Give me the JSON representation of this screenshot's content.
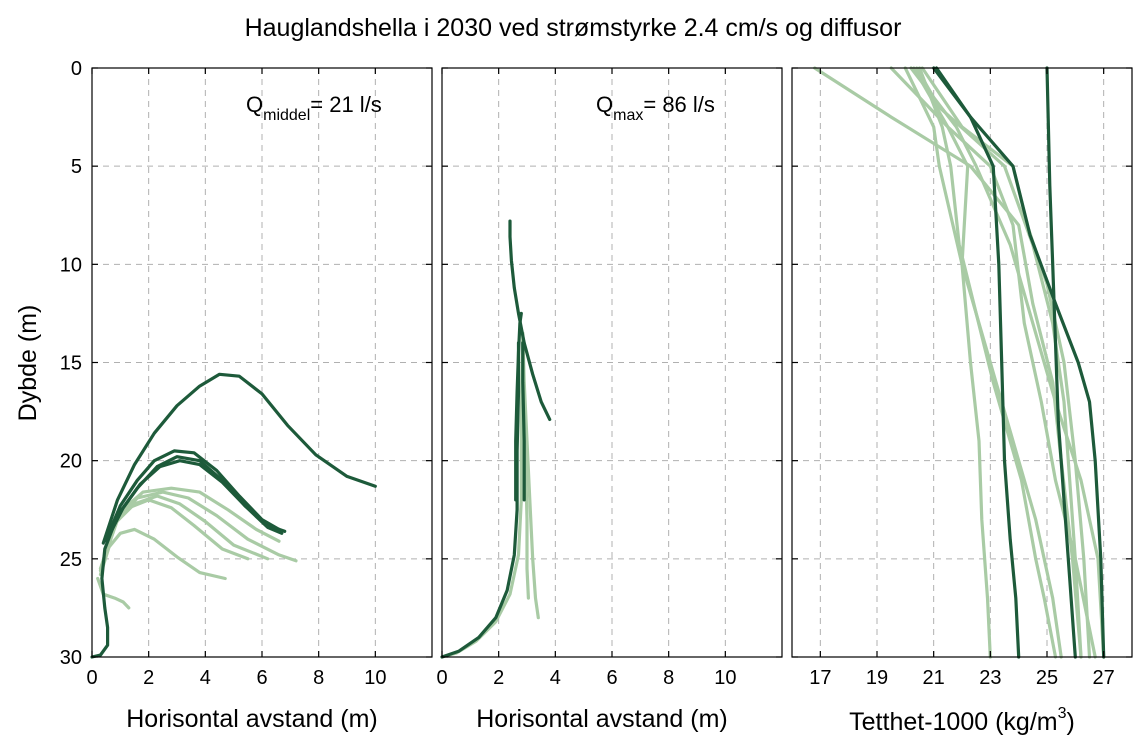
{
  "figure": {
    "title": "Hauglandshella i 2030 ved strømstyrke 2.4 cm/s og diffusor"
  },
  "colors": {
    "dark": "#1d5a3a",
    "light": "#a9cba5"
  },
  "chart_data": [
    {
      "type": "line",
      "ylabel": "Dybde (m)",
      "xlabel": "Horisontal avstand (m)",
      "annotation": {
        "main": "Q",
        "sub": "middel",
        "rest": "= 21 l/s"
      },
      "xlim": [
        0,
        12
      ],
      "ylim": [
        30,
        0
      ],
      "y_reversed": true,
      "xticks": [
        "0",
        "2",
        "4",
        "6",
        "8",
        "10"
      ],
      "yticks": [
        "0",
        "5",
        "10",
        "15",
        "20",
        "25",
        "30"
      ],
      "grid": true,
      "series": [
        {
          "color": "light",
          "x": [
            0.2,
            0.4,
            0.8,
            1.1,
            1.3
          ],
          "y": [
            26.0,
            26.8,
            27.0,
            27.2,
            27.5
          ]
        },
        {
          "color": "light",
          "x": [
            0.3,
            0.6,
            1.0,
            1.5,
            2.2,
            3.0,
            3.8,
            4.7
          ],
          "y": [
            25.8,
            24.4,
            23.7,
            23.5,
            24.0,
            24.9,
            25.7,
            26.0
          ]
        },
        {
          "color": "light",
          "x": [
            0.3,
            0.7,
            1.3,
            2.0,
            2.8,
            3.6,
            4.6,
            5.5
          ],
          "y": [
            25.6,
            23.4,
            22.4,
            22.0,
            22.4,
            23.3,
            24.5,
            25.0
          ]
        },
        {
          "color": "light",
          "x": [
            0.3,
            0.8,
            1.5,
            2.3,
            3.1,
            4.0,
            5.0,
            6.2
          ],
          "y": [
            25.6,
            23.2,
            22.2,
            21.8,
            22.2,
            23.1,
            24.3,
            25.0
          ]
        },
        {
          "color": "light",
          "x": [
            0.3,
            0.9,
            1.6,
            2.5,
            3.4,
            4.4,
            5.5,
            6.6,
            7.2
          ],
          "y": [
            25.5,
            23.0,
            21.9,
            21.6,
            21.9,
            22.8,
            24.0,
            24.8,
            25.1
          ]
        },
        {
          "color": "light",
          "x": [
            0.3,
            1.0,
            1.8,
            2.8,
            3.8,
            4.8,
            5.8,
            6.6
          ],
          "y": [
            25.5,
            22.6,
            21.6,
            21.4,
            21.6,
            22.5,
            23.5,
            24.1
          ]
        },
        {
          "color": "dark",
          "x": [
            0.0,
            0.3,
            0.55,
            0.55,
            0.45,
            0.35,
            0.45,
            0.9,
            1.6,
            2.3,
            3.0,
            3.8,
            4.6,
            5.4,
            6.2,
            6.8
          ],
          "y": [
            30.0,
            29.9,
            29.4,
            28.5,
            27.5,
            26.0,
            24.5,
            22.8,
            21.4,
            20.3,
            19.8,
            20.0,
            21.0,
            22.3,
            23.3,
            23.6
          ]
        },
        {
          "color": "dark",
          "x": [
            0.5,
            1.0,
            1.6,
            2.2,
            2.9,
            3.6,
            4.4,
            5.2,
            6.0,
            6.6
          ],
          "y": [
            24.0,
            22.3,
            21.0,
            20.0,
            19.5,
            19.6,
            20.5,
            21.8,
            23.0,
            23.5
          ]
        },
        {
          "color": "dark",
          "x": [
            0.5,
            1.1,
            1.7,
            2.4,
            3.1,
            3.8,
            4.6,
            5.4,
            6.2,
            6.7
          ],
          "y": [
            24.1,
            22.4,
            21.2,
            20.3,
            20.0,
            20.2,
            21.1,
            22.3,
            23.4,
            23.7
          ]
        },
        {
          "color": "dark",
          "x": [
            0.4,
            0.9,
            1.5,
            2.2,
            3.0,
            3.8,
            4.5,
            5.2,
            6.0,
            6.9,
            7.9,
            9.0,
            10.0
          ],
          "y": [
            24.2,
            22.0,
            20.2,
            18.6,
            17.2,
            16.2,
            15.6,
            15.7,
            16.6,
            18.2,
            19.7,
            20.8,
            21.3
          ]
        }
      ]
    },
    {
      "type": "line",
      "xlabel": "Horisontal avstand (m)",
      "annotation": {
        "main": "Q",
        "sub": "max",
        "rest": "= 86 l/s"
      },
      "xlim": [
        0,
        12
      ],
      "ylim": [
        30,
        0
      ],
      "y_reversed": true,
      "xticks": [
        "0",
        "2",
        "4",
        "6",
        "8",
        "10"
      ],
      "grid": true,
      "series": [
        {
          "color": "light",
          "x": [
            0.0,
            0.5,
            1.2,
            1.9,
            2.4,
            2.7,
            2.8,
            2.8,
            2.85,
            2.9,
            3.0,
            3.1,
            3.2,
            3.3,
            3.4
          ],
          "y": [
            30.0,
            29.8,
            29.2,
            28.2,
            26.8,
            24.8,
            22.0,
            18.0,
            13.5,
            16.0,
            19.0,
            22.0,
            25.0,
            27.0,
            28.0
          ]
        },
        {
          "color": "light",
          "x": [
            2.9,
            2.95,
            3.0,
            3.0,
            3.05
          ],
          "y": [
            17.0,
            20.0,
            23.0,
            25.5,
            27.0
          ]
        },
        {
          "color": "dark",
          "x": [
            0.0,
            0.6,
            1.3,
            1.9,
            2.3,
            2.55,
            2.65,
            2.65,
            2.7,
            2.7
          ],
          "y": [
            30.0,
            29.7,
            29.0,
            28.0,
            26.6,
            24.8,
            22.5,
            19.5,
            16.5,
            14.0
          ]
        },
        {
          "color": "dark",
          "x": [
            2.6,
            2.6,
            2.65,
            2.7,
            2.75,
            2.8
          ],
          "y": [
            22.0,
            19.0,
            16.5,
            14.5,
            13.0,
            12.5
          ]
        },
        {
          "color": "dark",
          "x": [
            2.4,
            2.4,
            2.45,
            2.55,
            2.7,
            2.9,
            3.2,
            3.5,
            3.8
          ],
          "y": [
            7.8,
            8.6,
            9.8,
            11.2,
            12.5,
            14.0,
            15.6,
            17.0,
            17.9
          ]
        },
        {
          "color": "dark",
          "x": [
            2.9,
            2.9,
            2.85,
            2.85
          ],
          "y": [
            22.0,
            19.0,
            16.0,
            14.0
          ]
        }
      ]
    },
    {
      "type": "line",
      "xlabel": "Tetthet-1000 (kg/m",
      "xlabel_sup": "3",
      "xlabel_end": ")",
      "xlim": [
        16,
        28
      ],
      "ylim": [
        30,
        0
      ],
      "y_reversed": true,
      "xticks": [
        "17",
        "19",
        "21",
        "23",
        "25",
        "27"
      ],
      "grid": true,
      "series": [
        {
          "color": "light",
          "x": [
            16.8,
            19.5,
            22.3,
            24.0,
            24.5,
            25.2,
            25.5,
            25.9,
            26.2
          ],
          "y": [
            0.0,
            2.5,
            5.0,
            8.0,
            12.0,
            16.0,
            20.0,
            25.0,
            30.0
          ]
        },
        {
          "color": "light",
          "x": [
            19.5,
            21.5,
            23.0,
            23.8,
            24.2,
            24.8,
            25.3,
            26.0,
            26.7
          ],
          "y": [
            0.0,
            3.0,
            5.0,
            8.0,
            13.0,
            17.0,
            21.0,
            25.0,
            30.0
          ]
        },
        {
          "color": "light",
          "x": [
            20.2,
            21.8,
            22.5,
            23.7,
            24.5,
            25.3,
            26.2,
            26.8,
            27.0
          ],
          "y": [
            0.0,
            3.0,
            5.0,
            9.0,
            13.0,
            17.0,
            21.0,
            25.0,
            30.0
          ]
        },
        {
          "color": "light",
          "x": [
            20.3,
            21.5,
            22.2,
            22.0,
            22.3,
            22.6,
            22.7,
            22.9,
            23.0
          ],
          "y": [
            0.0,
            3.0,
            5.0,
            10.0,
            15.0,
            19.0,
            23.0,
            27.0,
            30.0
          ]
        },
        {
          "color": "light",
          "x": [
            20.5,
            21.3,
            21.6,
            21.9,
            23.1,
            24.1,
            24.6,
            24.9,
            25.3
          ],
          "y": [
            0.0,
            3.0,
            5.0,
            9.0,
            16.0,
            21.0,
            25.0,
            27.0,
            30.0
          ]
        },
        {
          "color": "light",
          "x": [
            20.6,
            22.0,
            23.8,
            24.3,
            25.0,
            25.6,
            26.0,
            26.3,
            26.5
          ],
          "y": [
            0.0,
            3.0,
            5.0,
            8.0,
            11.0,
            15.0,
            20.0,
            25.0,
            30.0
          ]
        },
        {
          "color": "light",
          "x": [
            20.4,
            21.2,
            23.5,
            24.5,
            25.2,
            25.6,
            25.8,
            26.0,
            26.2
          ],
          "y": [
            0.0,
            2.0,
            5.0,
            9.0,
            13.0,
            17.0,
            21.0,
            25.0,
            30.0
          ]
        },
        {
          "color": "light",
          "x": [
            20.0,
            21.0,
            21.2,
            22.0,
            23.0,
            23.8,
            24.6,
            25.2,
            25.5
          ],
          "y": [
            0.0,
            3.0,
            5.0,
            10.0,
            15.0,
            19.0,
            23.0,
            27.0,
            30.0
          ]
        },
        {
          "color": "dark",
          "x": [
            21.1,
            22.3,
            23.1,
            23.3,
            23.4,
            23.5,
            23.7,
            23.9,
            24.0
          ],
          "y": [
            0.0,
            2.5,
            5.0,
            10.0,
            15.0,
            20.0,
            24.0,
            27.0,
            30.0
          ]
        },
        {
          "color": "dark",
          "x": [
            21.0,
            22.3,
            23.8,
            24.4,
            25.3,
            26.1,
            26.5,
            26.7,
            26.9,
            27.0
          ],
          "y": [
            0.0,
            2.5,
            5.0,
            8.5,
            12.0,
            15.0,
            17.0,
            20.0,
            25.0,
            30.0
          ]
        },
        {
          "color": "dark",
          "x": [
            25.0,
            25.05,
            25.1,
            25.2,
            25.3,
            25.4,
            25.6,
            25.8,
            26.0
          ],
          "y": [
            0.0,
            3.0,
            6.0,
            10.0,
            14.0,
            18.0,
            22.0,
            26.0,
            30.0
          ]
        }
      ]
    }
  ]
}
